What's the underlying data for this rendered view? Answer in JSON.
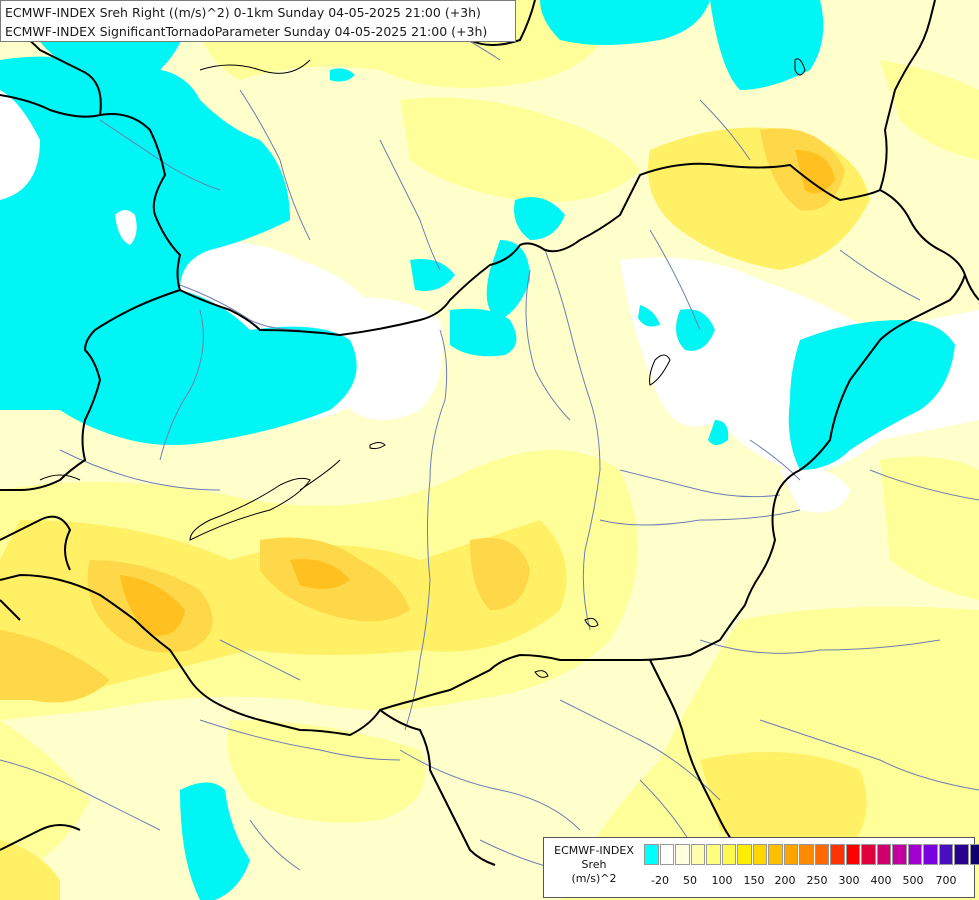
{
  "header": {
    "line1": "ECMWF-INDEX Sreh Right ((m/s)^2) 0-1km Sunday 04-05-2025 21:00 (+3h)",
    "line2": "ECMWF-INDEX SignificantTornadoParameter Sunday 04-05-2025 21:00 (+3h)"
  },
  "legend": {
    "title1": "ECMWF-INDEX",
    "title2": "Sreh",
    "title3": "(m/s)^2",
    "ticks": [
      "-20",
      "50",
      "100",
      "150",
      "200",
      "250",
      "300",
      "400",
      "500",
      "700"
    ],
    "colors": [
      "#00ffff",
      "#ffffff",
      "#ffffe0",
      "#ffffb0",
      "#ffff80",
      "#fffa50",
      "#ffee00",
      "#ffd700",
      "#ffbf00",
      "#ffa500",
      "#ff8c00",
      "#ff6a00",
      "#ff3300",
      "#ff0000",
      "#e0003c",
      "#d0006e",
      "#c000a0",
      "#a000d0",
      "#7a00e0",
      "#4a10c0",
      "#2a0090",
      "#100070"
    ]
  },
  "colors": {
    "cyan": "#00f5f5",
    "background": "#ffffcc",
    "light_yellow": "#ffff99",
    "yellow": "#fff066",
    "gold": "#ffd84a",
    "orange": "#ffc020",
    "border": "#000000",
    "river": "#6b7fb0"
  }
}
